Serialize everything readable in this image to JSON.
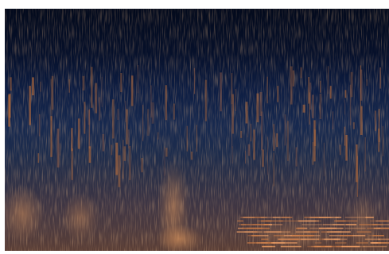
{
  "image": {
    "kind": "spectrogram",
    "colors": {
      "background": "#ffffff",
      "top": "#030b1f",
      "upper_mid": "#0f2147",
      "mid": "#1d3359",
      "lower_mid": "#3a3845",
      "warm": "#b7693a",
      "bright": "#f0a066"
    }
  }
}
